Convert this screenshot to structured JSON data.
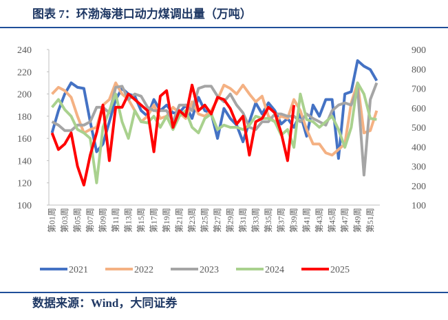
{
  "title": "图表 7：环渤海港口动力煤调出量（万吨）",
  "source": "数据来源：Wind，大同证券",
  "chart_data": [
    {
      "type": "line",
      "categories": [
        "第01周",
        null,
        "第03周",
        null,
        "第05周",
        null,
        "第07周",
        null,
        "第09周",
        null,
        "第11周",
        null,
        "第13周",
        null,
        "第15周",
        null,
        "第17周",
        null,
        "第19周",
        null,
        "第21周",
        null,
        "第23周",
        null,
        "第25周",
        null,
        "第27周",
        null,
        "第29周",
        null,
        "第31周",
        null,
        "第33周",
        null,
        "第35周",
        null,
        "第37周",
        null,
        "第39周",
        null,
        "第41周",
        null,
        "第43周",
        null,
        "第45周",
        null,
        "第47周",
        null,
        "第49周",
        null,
        "第51周",
        null
      ],
      "ylim": [
        100,
        240
      ],
      "yticks": [
        100,
        120,
        140,
        160,
        180,
        200,
        220,
        240
      ],
      "series": [
        {
          "name": "2021",
          "color": "#4472c4",
          "values": [
            165,
            185,
            200,
            210,
            206,
            205,
            175,
            148,
            155,
            175,
            195,
            205,
            200,
            198,
            185,
            180,
            195,
            185,
            190,
            183,
            183,
            190,
            178,
            197,
            185,
            183,
            160,
            187,
            178,
            172,
            157,
            175,
            192,
            182,
            192,
            185,
            173,
            178,
            170,
            182,
            162,
            190,
            180,
            195,
            195,
            142,
            200,
            202,
            230,
            225,
            222,
            212
          ]
        },
        {
          "name": "2022",
          "color": "#f4b183",
          "values": [
            200,
            206,
            203,
            197,
            180,
            165,
            168,
            170,
            190,
            195,
            210,
            200,
            195,
            185,
            175,
            180,
            190,
            178,
            180,
            188,
            183,
            178,
            193,
            182,
            180,
            185,
            195,
            208,
            205,
            200,
            208,
            200,
            193,
            198,
            180,
            175,
            180,
            178,
            195,
            185,
            168,
            155,
            155,
            147,
            145,
            150,
            155,
            192,
            210,
            165,
            167,
            185
          ]
        },
        {
          "name": "2023",
          "color": "#a5a5a5",
          "values": [
            175,
            172,
            167,
            167,
            172,
            172,
            175,
            188,
            188,
            183,
            206,
            207,
            195,
            200,
            198,
            188,
            185,
            185,
            185,
            175,
            190,
            190,
            185,
            205,
            207,
            207,
            198,
            193,
            200,
            190,
            183,
            170,
            168,
            175,
            175,
            182,
            182,
            180,
            180,
            175,
            182,
            178,
            175,
            172,
            185,
            190,
            192,
            190,
            205,
            127,
            195,
            210
          ]
        },
        {
          "name": "2024",
          "color": "#a9d18e",
          "values": [
            188,
            195,
            186,
            180,
            168,
            165,
            160,
            120,
            170,
            185,
            200,
            175,
            160,
            185,
            175,
            174,
            180,
            170,
            180,
            168,
            180,
            185,
            170,
            165,
            178,
            182,
            168,
            172,
            170,
            170,
            168,
            172,
            180,
            178,
            178,
            175,
            163,
            168,
            152,
            200,
            177,
            175,
            170,
            175,
            180,
            168,
            152,
            170,
            210,
            200,
            178,
            177
          ]
        },
        {
          "name": "2025",
          "color": "#ff0000",
          "values": [
            165,
            150,
            155,
            165,
            135,
            118,
            145,
            165,
            190,
            140,
            188,
            188,
            200,
            195,
            190,
            185,
            148,
            198,
            203,
            170,
            185,
            180,
            208,
            185,
            190,
            182,
            197,
            195,
            187,
            173,
            180,
            145,
            175,
            178,
            188,
            183,
            165,
            140,
            190,
            null,
            null,
            null,
            null,
            null,
            null,
            null,
            null,
            null,
            null,
            null,
            null,
            null
          ]
        }
      ]
    },
    {
      "type": "line",
      "ylim": [
        100,
        900
      ],
      "yticks": [
        100,
        200,
        300,
        400,
        500,
        600,
        700,
        800,
        900
      ]
    }
  ]
}
